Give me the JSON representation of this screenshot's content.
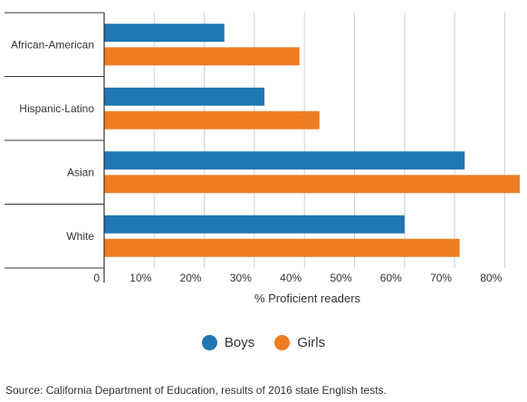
{
  "chart_data": {
    "type": "bar",
    "orientation": "horizontal",
    "categories": [
      "African-American",
      "Hispanic-Latino",
      "Asian",
      "White"
    ],
    "series": [
      {
        "name": "Boys",
        "color": "#1f77b4",
        "values": [
          24,
          32,
          72,
          60
        ]
      },
      {
        "name": "Girls",
        "color": "#f07c22",
        "values": [
          39,
          43,
          83,
          71
        ]
      }
    ],
    "xlabel": "% Proficient readers",
    "xlim": [
      0,
      83
    ],
    "xticks": [
      {
        "value": 0,
        "label": "0"
      },
      {
        "value": 10,
        "label": "10%"
      },
      {
        "value": 20,
        "label": "20%"
      },
      {
        "value": 30,
        "label": "30%"
      },
      {
        "value": 40,
        "label": "40%"
      },
      {
        "value": 50,
        "label": "50%"
      },
      {
        "value": 60,
        "label": "60%"
      },
      {
        "value": 70,
        "label": "70%"
      },
      {
        "value": 80,
        "label": "80%"
      }
    ],
    "grid": true,
    "legend_position": "bottom"
  },
  "legend": {
    "boys_label": "Boys",
    "girls_label": "Girls"
  },
  "source": "Source: California Department of Education, results of 2016 state English tests."
}
